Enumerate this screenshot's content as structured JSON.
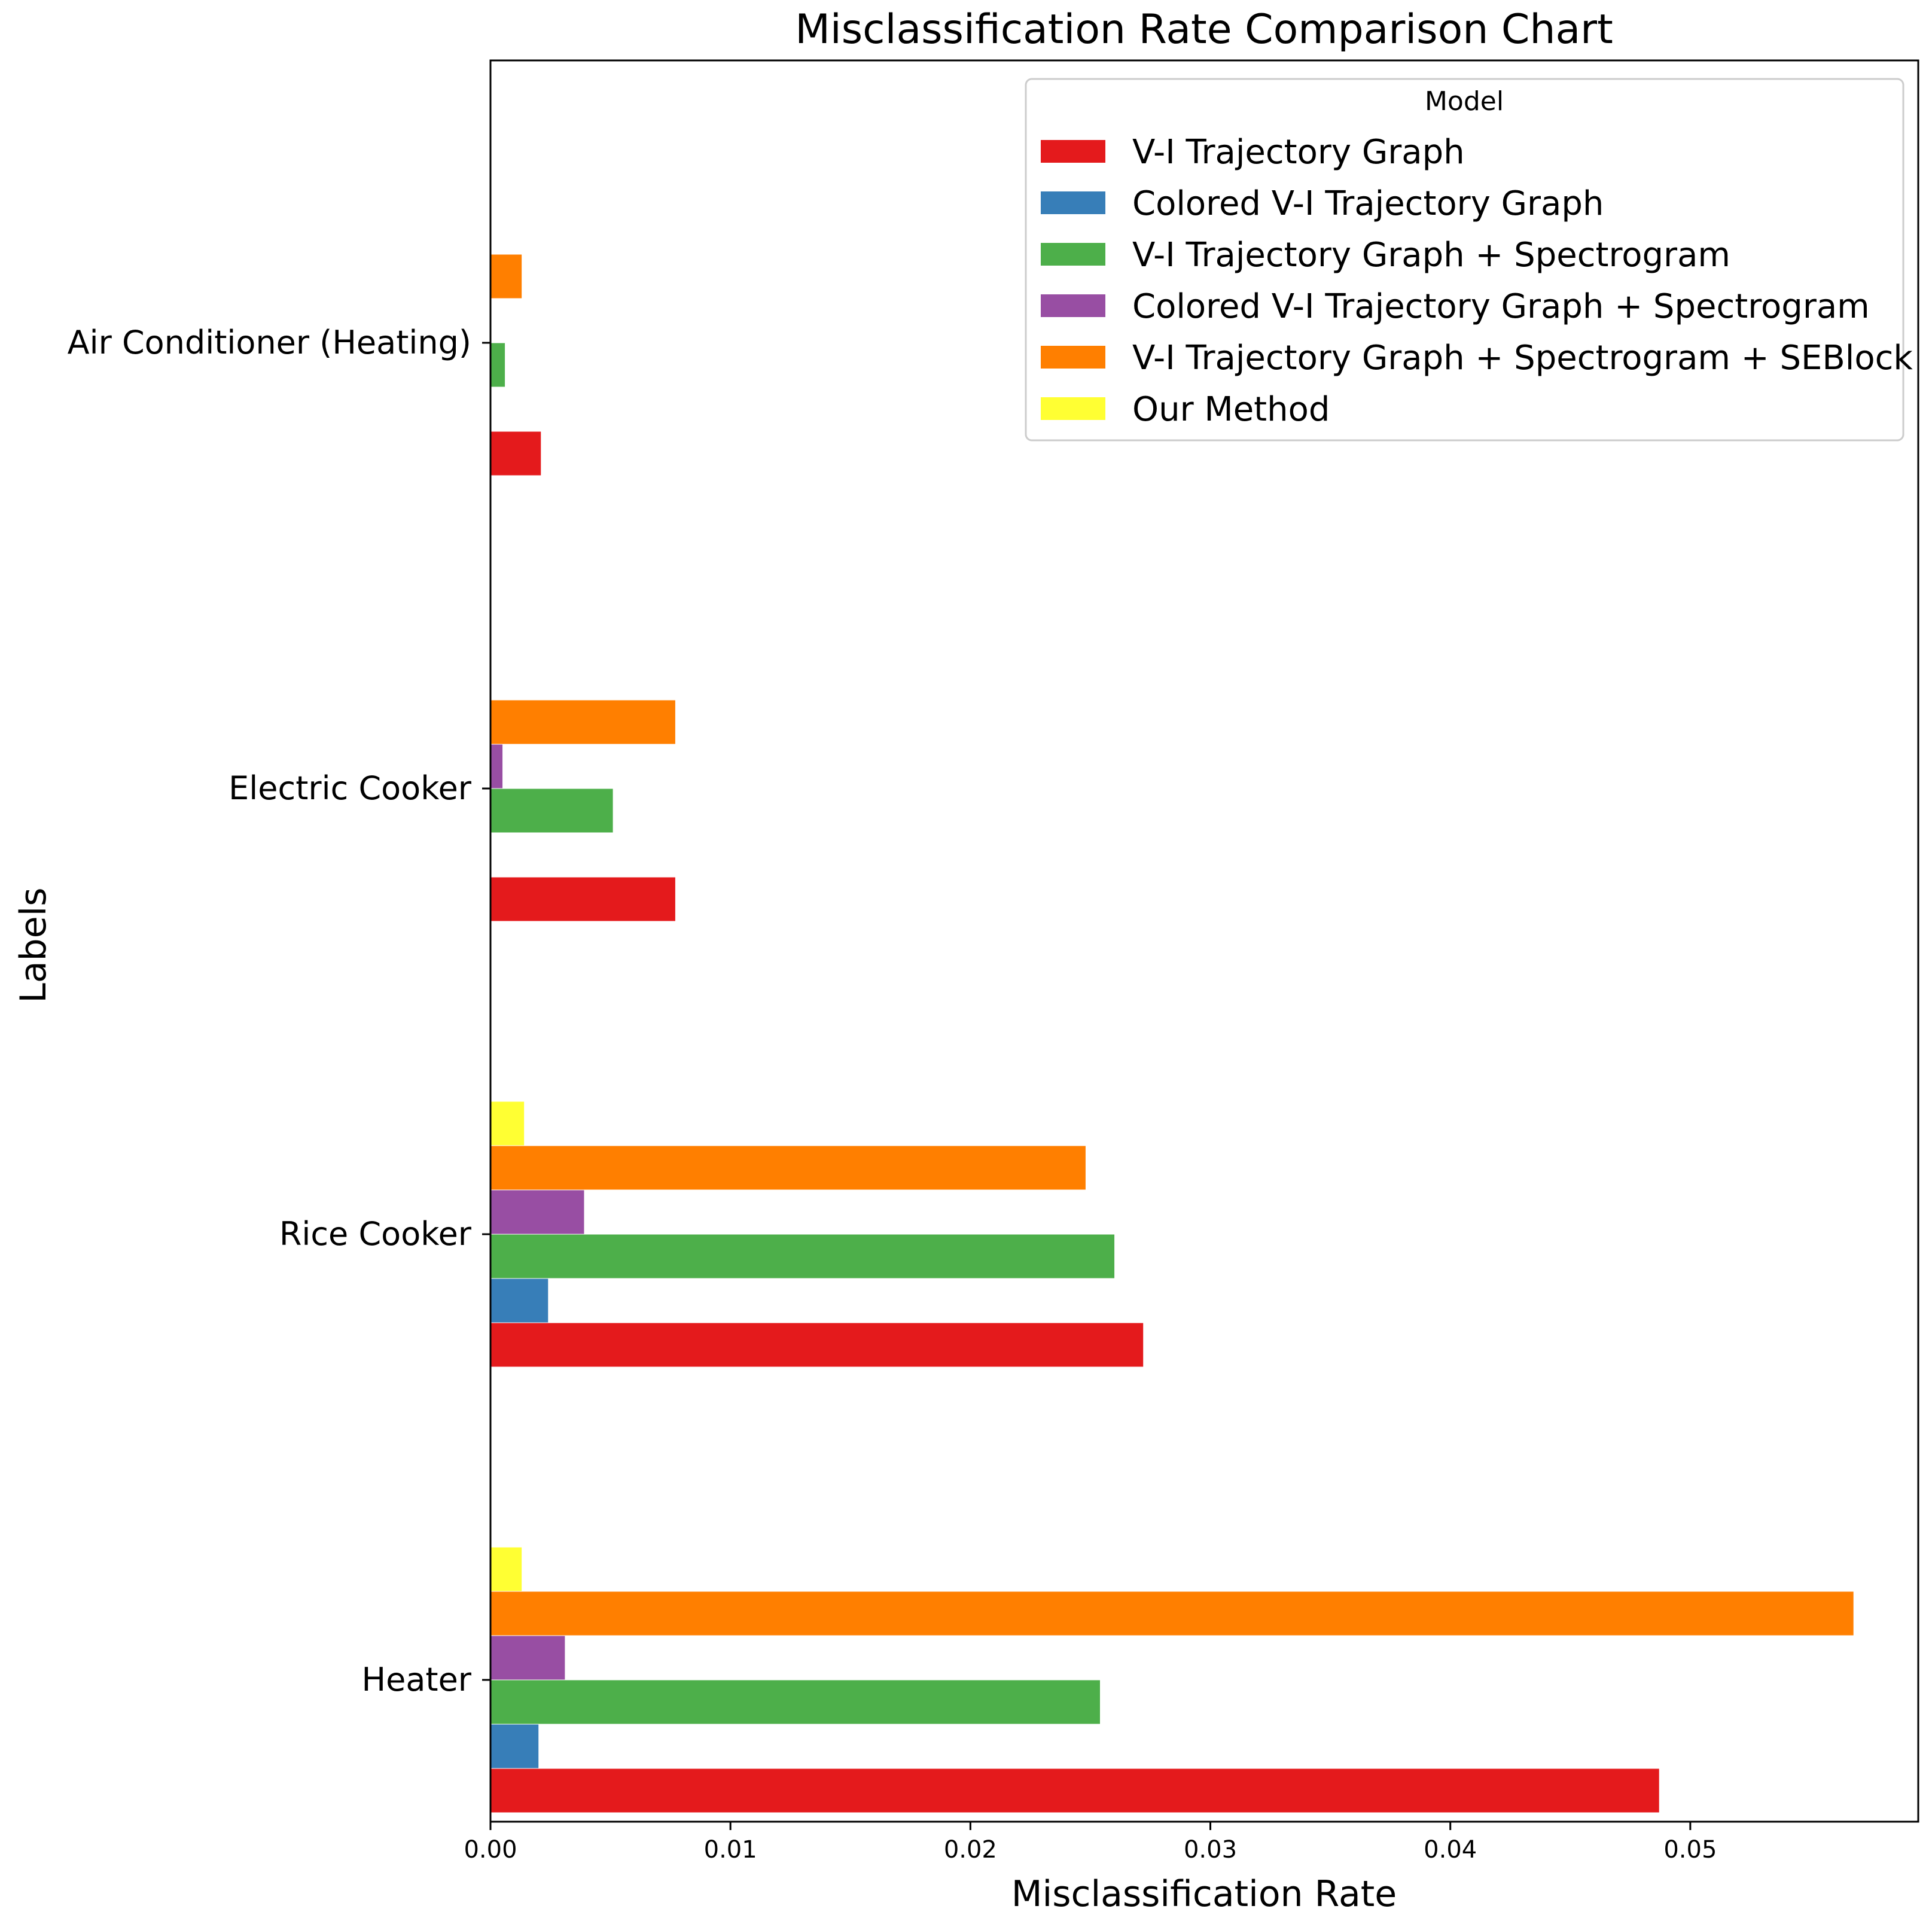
{
  "chart_data": {
    "type": "bar",
    "orientation": "horizontal",
    "title": "Misclassification Rate Comparison Chart",
    "xlabel": "Misclassification Rate",
    "ylabel": "Labels",
    "xlim": [
      0,
      0.0595
    ],
    "xticks": [
      0.0,
      0.01,
      0.02,
      0.03,
      0.04,
      0.05
    ],
    "xtick_labels": [
      "0.00",
      "0.01",
      "0.02",
      "0.03",
      "0.04",
      "0.05"
    ],
    "categories": [
      "Heater",
      "Rice Cooker",
      "Electric Cooker",
      "Air Conditioner (Heating)"
    ],
    "legend": {
      "title": "Model",
      "position": "upper-right"
    },
    "series": [
      {
        "name": "V-I Trajectory Graph",
        "color": "#e41a1c",
        "values": [
          0.0487,
          0.0272,
          0.0077,
          0.0021
        ]
      },
      {
        "name": "Colored V-I Trajectory Graph",
        "color": "#377eb8",
        "values": [
          0.002,
          0.0024,
          0.0,
          0.0
        ]
      },
      {
        "name": "V-I Trajectory Graph + Spectrogram",
        "color": "#4daf4a",
        "values": [
          0.0254,
          0.026,
          0.0051,
          0.0006
        ]
      },
      {
        "name": "Colored V-I Trajectory Graph + Spectrogram",
        "color": "#984ea3",
        "values": [
          0.0031,
          0.0039,
          0.0005,
          0.0
        ]
      },
      {
        "name": "V-I Trajectory Graph + Spectrogram + SEBlock",
        "color": "#ff7f00",
        "values": [
          0.0568,
          0.0248,
          0.0077,
          0.0013
        ]
      },
      {
        "name": "Our Method",
        "color": "#ffff33",
        "values": [
          0.0013,
          0.0014,
          0.0,
          0.0
        ]
      }
    ]
  }
}
